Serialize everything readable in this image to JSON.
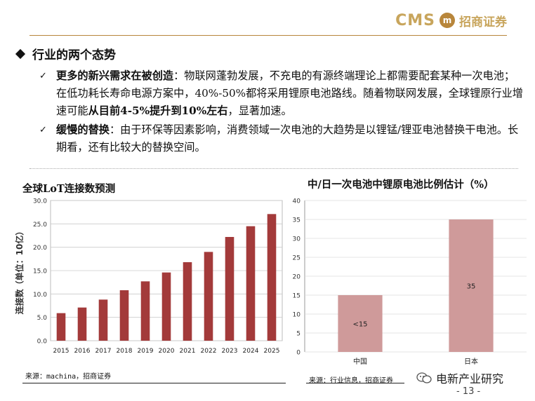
{
  "header": {
    "logo_cms": "CMS",
    "logo_mark": "m",
    "logo_cn": "招商证券"
  },
  "section_heading": "行业的两个态势",
  "bullets": [
    {
      "lead": "更多的新兴需求在被创造",
      "text": "：物联网蓬勃发展，不充电的有源终端理论上都需要配套某种一次电池；在低功耗长寿命电源方案中，40%-50%都将采用锂原电池路线。随着物联网发展，全球锂原行业增速可能",
      "bold_tail": "从目前4-5%提升到10%左右",
      "tail": "，显著加速。"
    },
    {
      "lead": "缓慢的替换",
      "text": "：由于环保等因素影响，消费领域一次电池的大趋势是以锂锰/锂亚电池替换干电池。长期看，还有比较大的替换空间。",
      "bold_tail": "",
      "tail": ""
    }
  ],
  "chart_left": {
    "title": "全球LoT连接数预测",
    "source": "来源：machina，招商证券",
    "ylabel": "连接数（单位：10亿）",
    "bar_color": "#a33a3a",
    "chart_data": {
      "type": "bar",
      "categories": [
        "2015",
        "2016",
        "2017",
        "2018",
        "2019",
        "2020",
        "2021",
        "2022",
        "2023",
        "2024",
        "2025"
      ],
      "values": [
        5.9,
        7.1,
        8.8,
        10.8,
        12.7,
        14.6,
        16.8,
        19.0,
        22.2,
        24.5,
        27.1
      ],
      "ylim": [
        0,
        30
      ],
      "yticks": [
        "0.0",
        "5.0",
        "10.0",
        "15.0",
        "20.0",
        "25.0",
        "30.0"
      ],
      "grid": true
    }
  },
  "chart_right": {
    "title": "中/日一次电池中锂原电池比例估计（%）",
    "source": "来源：行业信息，招商证券",
    "bar_color": "#cf9a9a",
    "chart_data": {
      "type": "bar",
      "categories": [
        "中国",
        "日本"
      ],
      "values": [
        15,
        35
      ],
      "data_labels": [
        "<15",
        "35"
      ],
      "ylim": [
        0,
        40
      ],
      "yticks": [
        "0",
        "5",
        "10",
        "15",
        "20",
        "25",
        "30",
        "35",
        "40"
      ],
      "grid": true
    }
  },
  "footer": {
    "wechat_label": "电新产业研究",
    "page_number": "- 13 -"
  }
}
